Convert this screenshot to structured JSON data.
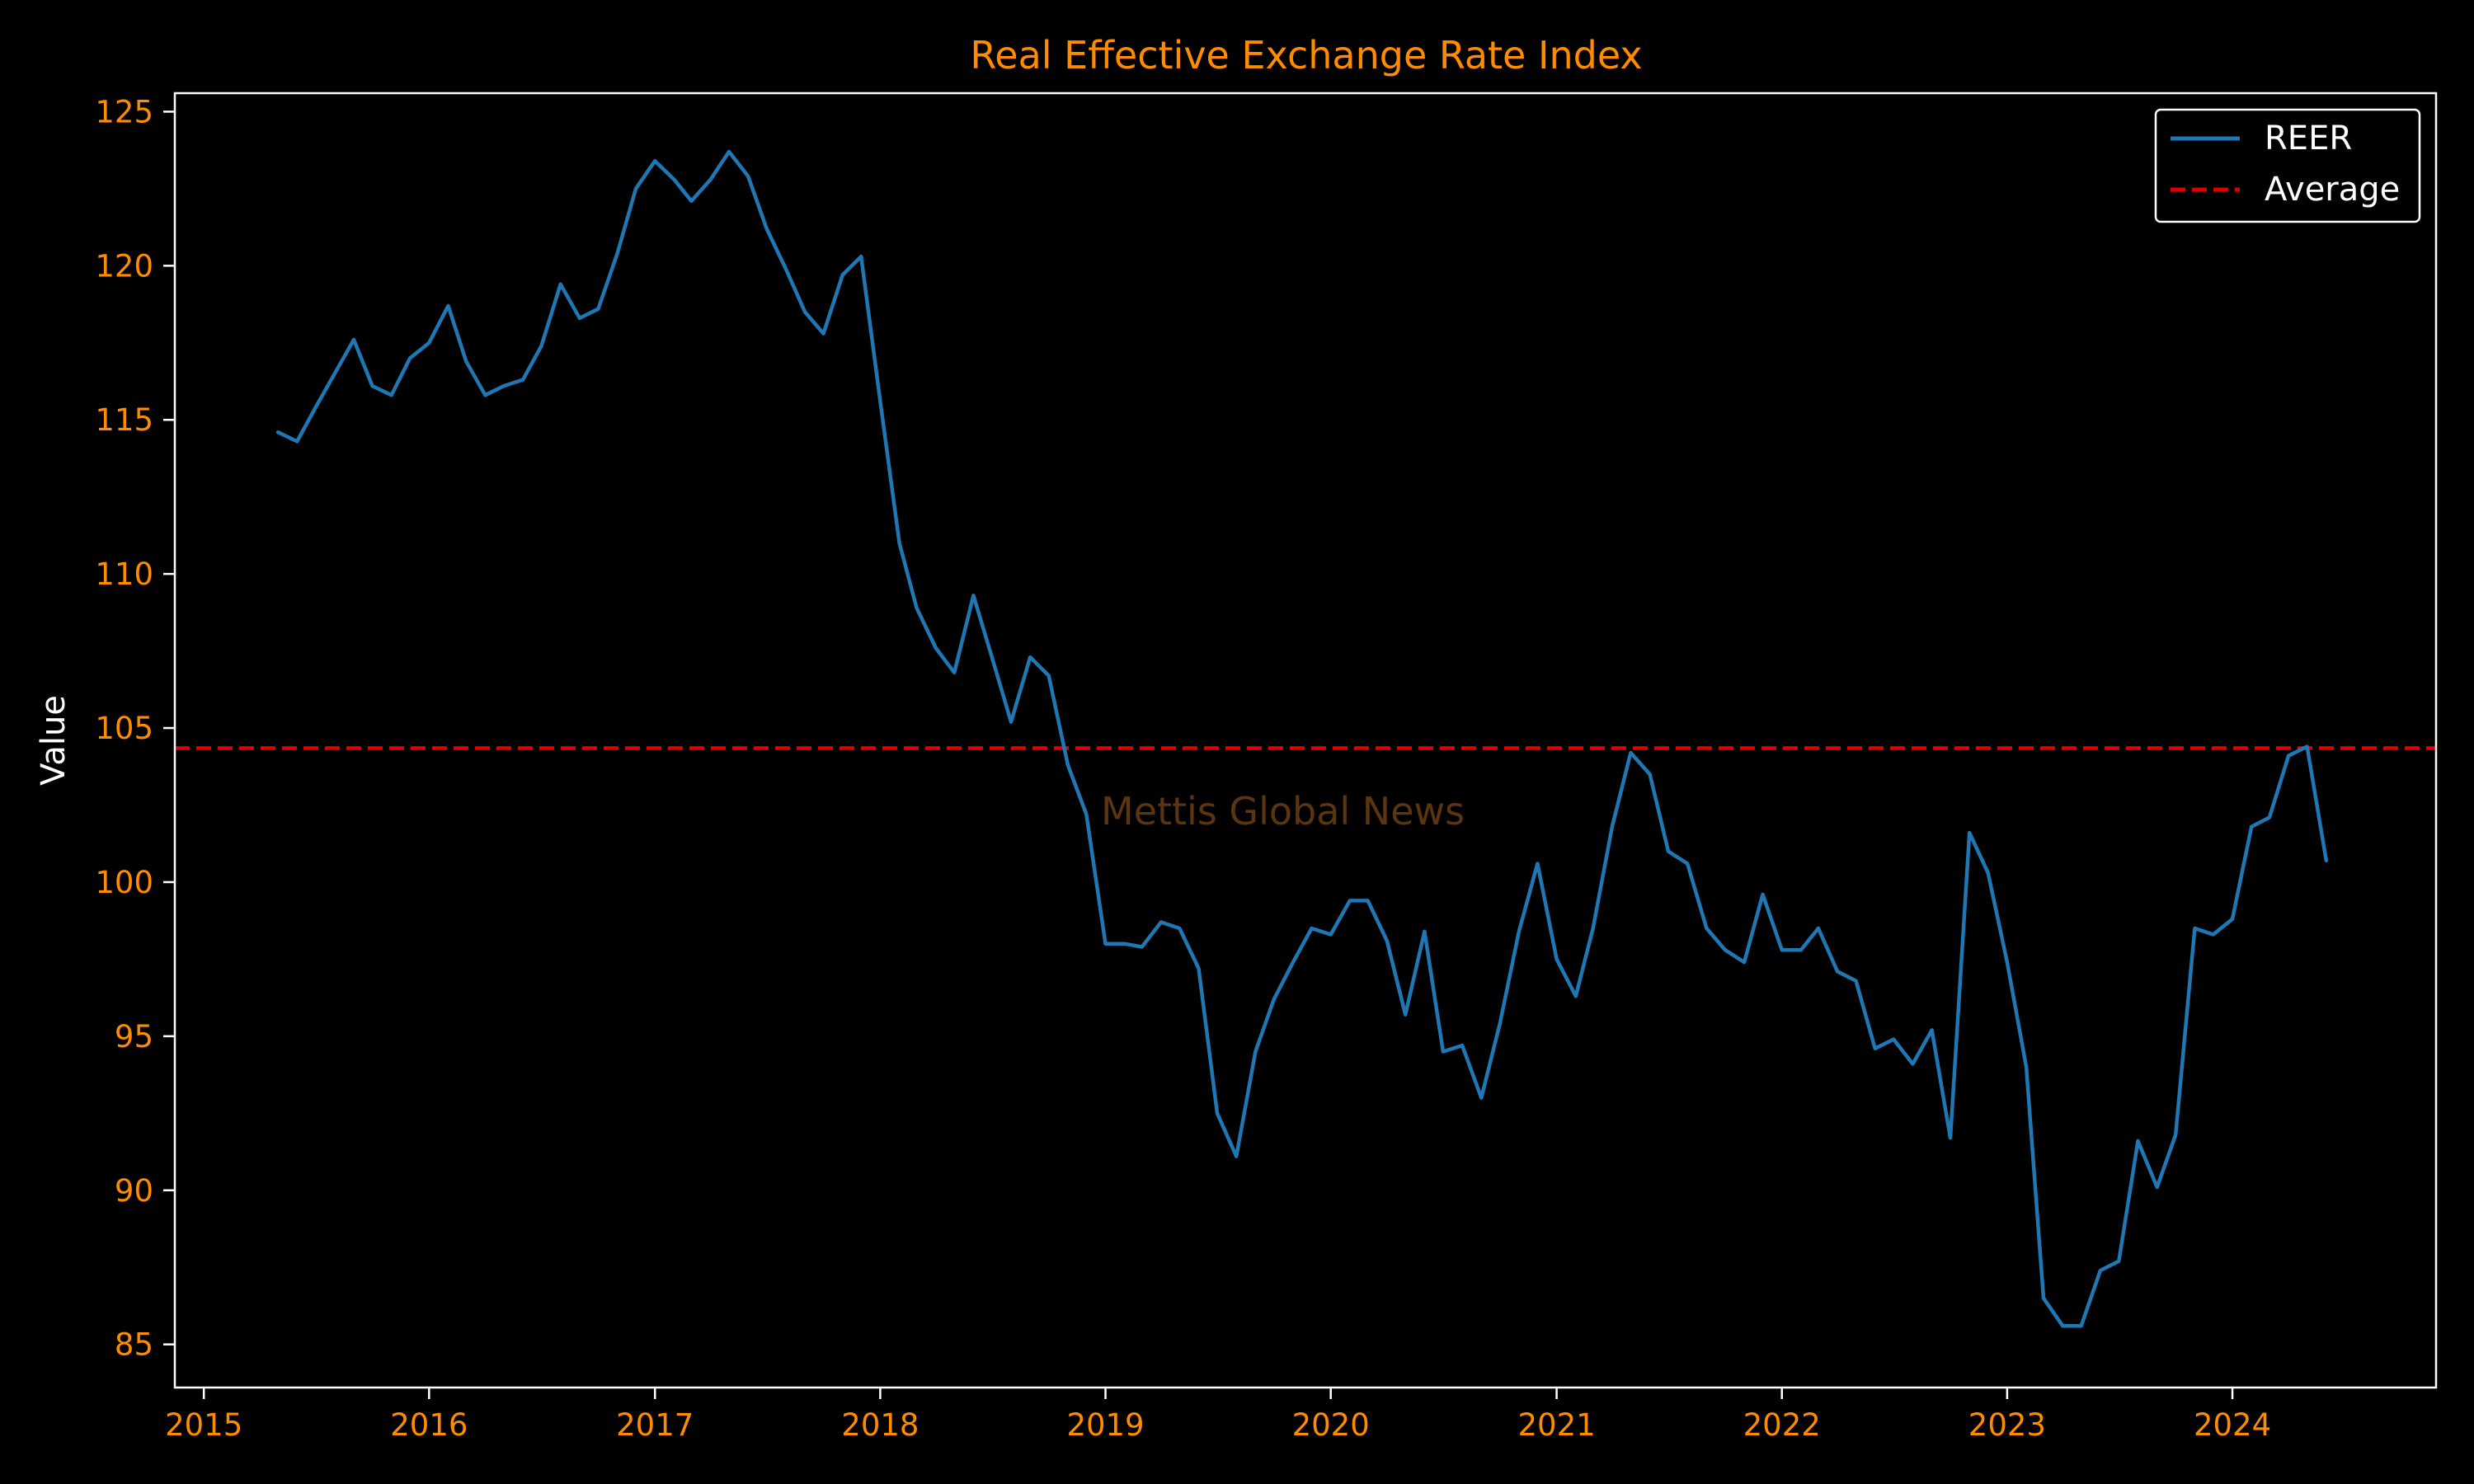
{
  "colors": {
    "background": "#000000",
    "axes": "#ffffff",
    "accent_text": "#ff8c00",
    "series": "#1f77b4",
    "average": "#e00000",
    "watermark": "#5a3510",
    "legend_border": "#ffffff"
  },
  "chart_data": {
    "type": "line",
    "title": "Real Effective Exchange Rate Index",
    "xlabel": "",
    "ylabel": "Value",
    "x_axis": "date",
    "xlim": [
      "2014-11-15",
      "2024-11-26"
    ],
    "ylim": [
      83.6,
      125.6
    ],
    "x_ticks": [
      "2015",
      "2016",
      "2017",
      "2018",
      "2019",
      "2020",
      "2021",
      "2022",
      "2023",
      "2024"
    ],
    "y_ticks": [
      85,
      90,
      95,
      100,
      105,
      110,
      115,
      120,
      125
    ],
    "grid": false,
    "legend": {
      "position": "top-right",
      "entries": [
        {
          "label": "REER",
          "style": "solid",
          "series": "REER"
        },
        {
          "label": "Average",
          "style": "dashed",
          "series": "Average"
        }
      ]
    },
    "watermark": "Mettis Global News",
    "series": [
      {
        "name": "REER",
        "style": "solid",
        "color": "#1f77b4",
        "points": [
          [
            "2015-05",
            114.6
          ],
          [
            "2015-06",
            114.3
          ],
          [
            "2015-07",
            115.4
          ],
          [
            "2015-08",
            116.5
          ],
          [
            "2015-09",
            117.6
          ],
          [
            "2015-10",
            116.1
          ],
          [
            "2015-11",
            115.8
          ],
          [
            "2015-12",
            117.0
          ],
          [
            "2016-01",
            117.5
          ],
          [
            "2016-02",
            118.7
          ],
          [
            "2016-03",
            116.9
          ],
          [
            "2016-04",
            115.8
          ],
          [
            "2016-05",
            116.1
          ],
          [
            "2016-06",
            116.3
          ],
          [
            "2016-07",
            117.4
          ],
          [
            "2016-08",
            119.4
          ],
          [
            "2016-09",
            118.3
          ],
          [
            "2016-10",
            118.6
          ],
          [
            "2016-11",
            120.4
          ],
          [
            "2016-12",
            122.5
          ],
          [
            "2017-01",
            123.4
          ],
          [
            "2017-02",
            122.8
          ],
          [
            "2017-03",
            122.1
          ],
          [
            "2017-04",
            122.8
          ],
          [
            "2017-05",
            123.7
          ],
          [
            "2017-06",
            122.9
          ],
          [
            "2017-07",
            121.2
          ],
          [
            "2017-08",
            119.9
          ],
          [
            "2017-09",
            118.5
          ],
          [
            "2017-10",
            117.8
          ],
          [
            "2017-11",
            119.7
          ],
          [
            "2017-12",
            120.3
          ],
          [
            "2018-01",
            115.6
          ],
          [
            "2018-02",
            111.0
          ],
          [
            "2018-03",
            108.9
          ],
          [
            "2018-04",
            107.6
          ],
          [
            "2018-05",
            106.8
          ],
          [
            "2018-06",
            109.3
          ],
          [
            "2018-07",
            107.3
          ],
          [
            "2018-08",
            105.2
          ],
          [
            "2018-09",
            107.3
          ],
          [
            "2018-10",
            106.7
          ],
          [
            "2018-11",
            103.8
          ],
          [
            "2018-12",
            102.2
          ],
          [
            "2019-01",
            98.0
          ],
          [
            "2019-02",
            98.0
          ],
          [
            "2019-03",
            97.9
          ],
          [
            "2019-04",
            98.7
          ],
          [
            "2019-05",
            98.5
          ],
          [
            "2019-06",
            97.2
          ],
          [
            "2019-07",
            92.5
          ],
          [
            "2019-08",
            91.1
          ],
          [
            "2019-09",
            94.5
          ],
          [
            "2019-10",
            96.2
          ],
          [
            "2019-11",
            97.4
          ],
          [
            "2019-12",
            98.5
          ],
          [
            "2020-01",
            98.3
          ],
          [
            "2020-02",
            99.4
          ],
          [
            "2020-03",
            99.4
          ],
          [
            "2020-04",
            98.1
          ],
          [
            "2020-05",
            95.7
          ],
          [
            "2020-06",
            98.4
          ],
          [
            "2020-07",
            94.5
          ],
          [
            "2020-08",
            94.7
          ],
          [
            "2020-09",
            93.0
          ],
          [
            "2020-10",
            95.4
          ],
          [
            "2020-11",
            98.4
          ],
          [
            "2020-12",
            100.6
          ],
          [
            "2021-01",
            97.5
          ],
          [
            "2021-02",
            96.3
          ],
          [
            "2021-03",
            98.5
          ],
          [
            "2021-04",
            101.8
          ],
          [
            "2021-05",
            104.2
          ],
          [
            "2021-06",
            103.5
          ],
          [
            "2021-07",
            101.0
          ],
          [
            "2021-08",
            100.6
          ],
          [
            "2021-09",
            98.5
          ],
          [
            "2021-10",
            97.8
          ],
          [
            "2021-11",
            97.4
          ],
          [
            "2021-12",
            99.6
          ],
          [
            "2022-01",
            97.8
          ],
          [
            "2022-02",
            97.8
          ],
          [
            "2022-03",
            98.5
          ],
          [
            "2022-04",
            97.1
          ],
          [
            "2022-05",
            96.8
          ],
          [
            "2022-06",
            94.6
          ],
          [
            "2022-07",
            94.9
          ],
          [
            "2022-08",
            94.1
          ],
          [
            "2022-09",
            95.2
          ],
          [
            "2022-10",
            91.7
          ],
          [
            "2022-11",
            101.6
          ],
          [
            "2022-12",
            100.3
          ],
          [
            "2023-01",
            97.4
          ],
          [
            "2023-02",
            94.0
          ],
          [
            "2023-03",
            86.5
          ],
          [
            "2023-04",
            85.6
          ],
          [
            "2023-05",
            85.6
          ],
          [
            "2023-06",
            87.4
          ],
          [
            "2023-07",
            87.7
          ],
          [
            "2023-08",
            91.6
          ],
          [
            "2023-09",
            90.1
          ],
          [
            "2023-10",
            91.8
          ],
          [
            "2023-11",
            98.5
          ],
          [
            "2023-12",
            98.3
          ],
          [
            "2024-01",
            98.8
          ],
          [
            "2024-02",
            101.8
          ],
          [
            "2024-03",
            102.1
          ],
          [
            "2024-04",
            104.1
          ],
          [
            "2024-05",
            104.4
          ],
          [
            "2024-06",
            100.7
          ]
        ]
      },
      {
        "name": "Average",
        "style": "dashed",
        "color": "#e00000",
        "constant": 104.35
      }
    ]
  }
}
